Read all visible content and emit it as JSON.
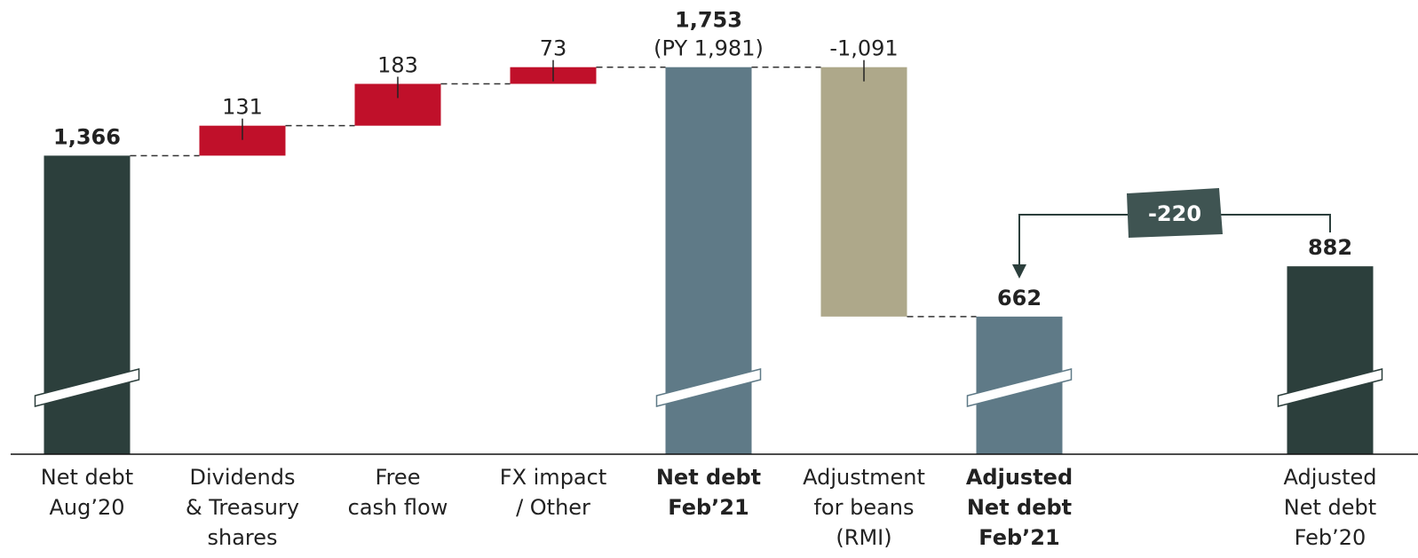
{
  "chart_data": {
    "type": "waterfall",
    "categories": [
      [
        "Net debt",
        "Aug’20"
      ],
      [
        "Dividends",
        "& Treasury",
        "shares"
      ],
      [
        "Free",
        "cash flow"
      ],
      [
        "FX impact",
        "/ Other"
      ],
      [
        "Net debt",
        "Feb’21"
      ],
      [
        "Adjustment",
        "for beans",
        "(RMI)"
      ],
      [
        "Adjusted",
        "Net debt",
        "Feb’21"
      ],
      null,
      [
        "Adjusted",
        "Net debt",
        "Feb’20"
      ]
    ],
    "values": [
      1366,
      131,
      183,
      73,
      1753,
      -1091,
      662,
      null,
      882
    ],
    "value_labels": [
      "1,366",
      "131",
      "183",
      "73",
      "1,753",
      "-1,091",
      "662",
      null,
      "882"
    ],
    "value_notes": [
      null,
      null,
      null,
      null,
      "(PY 1,981)",
      null,
      null,
      null,
      null
    ],
    "measure": [
      "absolute",
      "relative",
      "relative",
      "relative",
      "total",
      "relative",
      "total",
      null,
      "absolute"
    ],
    "colors": [
      "#2c3f3c",
      "#c0102a",
      "#c0102a",
      "#c0102a",
      "#5f7a87",
      "#aea88a",
      "#5f7a87",
      null,
      "#2c3f3c"
    ],
    "delta": -220,
    "ylim": [
      60,
      1800
    ],
    "axis_break": true
  }
}
